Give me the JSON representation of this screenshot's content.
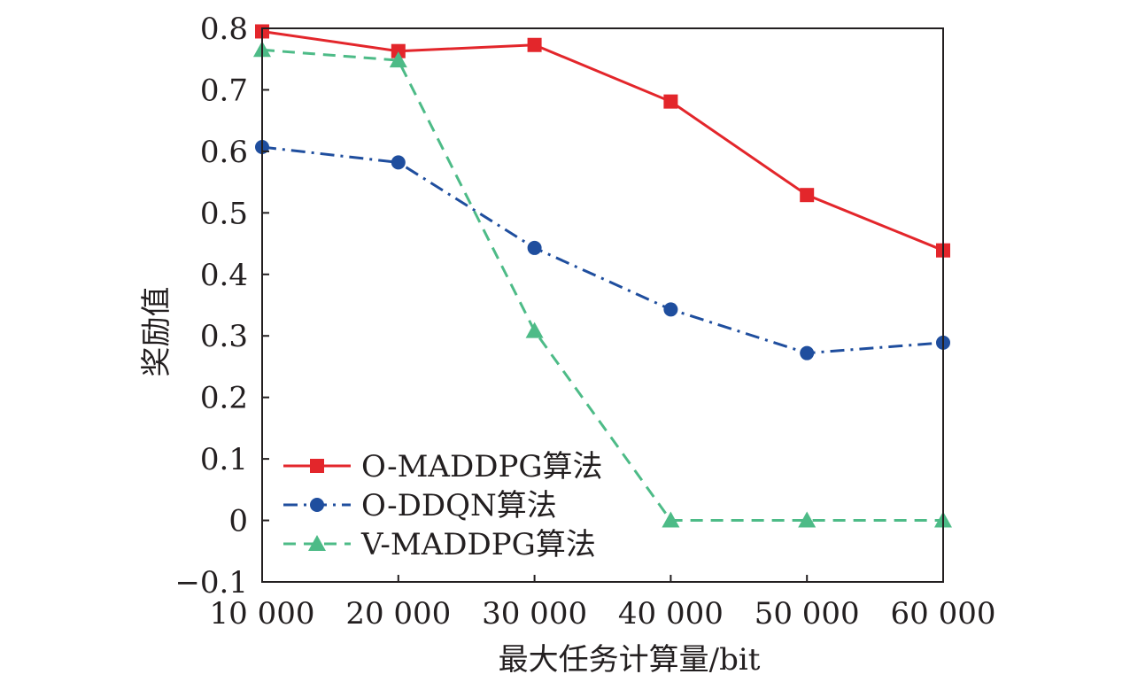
{
  "chart_data": {
    "type": "line",
    "x": [
      10000,
      20000,
      30000,
      40000,
      50000,
      60000
    ],
    "x_tick_labels": [
      "10 000",
      "20 000",
      "30 000",
      "40 000",
      "50 000",
      "60 000"
    ],
    "y_tick_labels": [
      "−0.1",
      "0",
      "0.1",
      "0.2",
      "0.3",
      "0.4",
      "0.5",
      "0.6",
      "0.7",
      "0.8"
    ],
    "y_ticks": [
      -0.1,
      0,
      0.1,
      0.2,
      0.3,
      0.4,
      0.5,
      0.6,
      0.7,
      0.8
    ],
    "xlim": [
      10000,
      60000
    ],
    "ylim": [
      -0.1,
      0.8
    ],
    "xlabel": "最大任务计算量/bit",
    "ylabel": "奖励值",
    "grid": false,
    "legend_position": "bottom-left",
    "series": [
      {
        "name": "O-MADDPG算法",
        "color": "#e3262b",
        "marker": "square",
        "dash": "solid",
        "values": [
          0.795,
          0.763,
          0.773,
          0.681,
          0.529,
          0.439
        ]
      },
      {
        "name": "O-DDQN算法",
        "color": "#1f4e9e",
        "marker": "circle",
        "dash": "dashdot",
        "values": [
          0.607,
          0.582,
          0.443,
          0.343,
          0.272,
          0.289
        ]
      },
      {
        "name": "V-MADDPG算法",
        "color": "#4dbb87",
        "marker": "triangle",
        "dash": "dashed",
        "values": [
          0.765,
          0.748,
          0.308,
          0.0,
          0.0,
          0.0
        ]
      }
    ]
  }
}
